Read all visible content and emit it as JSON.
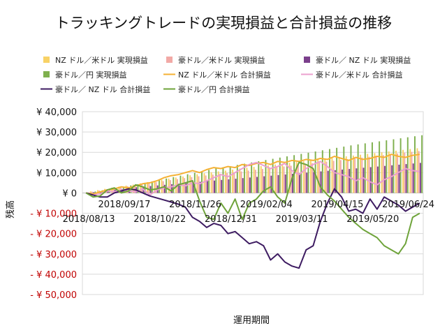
{
  "chart_data": {
    "type": "bar",
    "title": "トラッキングトレードの実現損益と合計損益の推移",
    "xlabel": "運用期間",
    "ylabel": "残高",
    "ylim": [
      -50000,
      40000
    ],
    "yticks": [
      {
        "value": 40000,
        "label": "¥ 40,000"
      },
      {
        "value": 30000,
        "label": "¥ 30,000"
      },
      {
        "value": 20000,
        "label": "¥ 20,000"
      },
      {
        "value": 10000,
        "label": "¥ 10,000"
      },
      {
        "value": 0,
        "label": "¥ 0"
      },
      {
        "value": -10000,
        "label": "- ¥ 10,000"
      },
      {
        "value": -20000,
        "label": "- ¥ 20,000"
      },
      {
        "value": -30000,
        "label": "- ¥ 30,000"
      },
      {
        "value": -40000,
        "label": "- ¥ 40,000"
      },
      {
        "value": -50000,
        "label": "- ¥ 50,000"
      }
    ],
    "grid": true,
    "legend_position": "top",
    "xticks": [
      {
        "index": 0,
        "label": "2018/08/13",
        "row": 2
      },
      {
        "index": 5,
        "label": "2018/09/17",
        "row": 1
      },
      {
        "index": 10,
        "label": "2018/10/22",
        "row": 2
      },
      {
        "index": 15,
        "label": "2018/11/26",
        "row": 1
      },
      {
        "index": 20,
        "label": "2018/12/31",
        "row": 2
      },
      {
        "index": 25,
        "label": "2019/02/04",
        "row": 1
      },
      {
        "index": 30,
        "label": "2019/03/11",
        "row": 2
      },
      {
        "index": 35,
        "label": "2019/04/15",
        "row": 1
      },
      {
        "index": 40,
        "label": "2019/05/20",
        "row": 2
      },
      {
        "index": 45,
        "label": "2019/06/24",
        "row": 1
      }
    ],
    "series": [
      {
        "name": "NZ ドル／米ドル 実現損益",
        "kind": "bar",
        "color": "#F8D266",
        "values": [
          0,
          800,
          1400,
          2000,
          2600,
          3100,
          3600,
          4100,
          4700,
          5300,
          5900,
          6500,
          7100,
          7600,
          8100,
          8700,
          9200,
          9700,
          10200,
          10600,
          11000,
          11500,
          12000,
          12400,
          12800,
          13200,
          13600,
          14000,
          14400,
          14800,
          15200,
          15600,
          16000,
          16400,
          16800,
          17200,
          17600,
          18000,
          18400,
          18800,
          19200,
          19600,
          20000,
          20400,
          20800,
          21200,
          21600,
          22000
        ]
      },
      {
        "name": "豪ドル／米ドル 実現損益",
        "kind": "bar",
        "color": "#F2A9A6",
        "values": [
          0,
          600,
          1200,
          1800,
          2300,
          2800,
          3300,
          3800,
          4300,
          4800,
          5300,
          5800,
          6300,
          6800,
          7300,
          7800,
          8200,
          8600,
          9000,
          9400,
          9800,
          10200,
          10600,
          11000,
          11400,
          11800,
          12200,
          12600,
          13000,
          13400,
          13800,
          14200,
          14600,
          15000,
          15400,
          15800,
          16200,
          16600,
          17000,
          17400,
          17800,
          18200,
          18600,
          19000,
          19400,
          19800,
          20200,
          20600
        ]
      },
      {
        "name": "豪ドル／ NZ ドル 実現損益",
        "kind": "bar",
        "color": "#7B3F8C",
        "values": [
          0,
          400,
          800,
          1200,
          1600,
          2000,
          2400,
          2800,
          3100,
          3400,
          3700,
          4000,
          4300,
          4600,
          4900,
          5200,
          5500,
          5800,
          6100,
          6400,
          6700,
          7000,
          7300,
          7600,
          7900,
          8200,
          8500,
          8800,
          9100,
          9400,
          9700,
          10000,
          10300,
          10600,
          10900,
          11200,
          11500,
          11800,
          12100,
          12400,
          12700,
          13000,
          13300,
          13600,
          13900,
          14200,
          14500,
          14800
        ]
      },
      {
        "name": "豪ドル／円 実現損益",
        "kind": "bar",
        "color": "#7FB04E",
        "values": [
          0,
          700,
          1300,
          1900,
          2500,
          3100,
          3700,
          4300,
          5000,
          5700,
          6400,
          7100,
          7800,
          8500,
          9200,
          9900,
          10600,
          11300,
          12000,
          12600,
          13200,
          13800,
          14400,
          15000,
          15600,
          16200,
          16800,
          17400,
          18000,
          18600,
          19200,
          19800,
          20400,
          21000,
          21600,
          22200,
          22800,
          23400,
          23900,
          24400,
          24900,
          25400,
          25900,
          26400,
          26900,
          27400,
          27900,
          28400
        ]
      },
      {
        "name": "NZ ドル／米ドル 合計損益",
        "kind": "line",
        "color": "#F5B133",
        "values": [
          0,
          -500,
          500,
          1500,
          2000,
          3000,
          2500,
          3500,
          4500,
          5000,
          6000,
          7500,
          8500,
          9000,
          10000,
          11000,
          10000,
          11500,
          12500,
          12000,
          13000,
          12500,
          14000,
          13500,
          14500,
          15000,
          14000,
          15500,
          15000,
          16000,
          15500,
          16500,
          16000,
          17000,
          16500,
          18000,
          17000,
          16000,
          17500,
          16500,
          17000,
          18000,
          17500,
          19000,
          18000,
          17500,
          18500,
          19000
        ]
      },
      {
        "name": "豪ドル／米ドル 合計損益",
        "kind": "line",
        "color": "#EBA0CF",
        "values": [
          0,
          -1000,
          -500,
          1000,
          500,
          1500,
          1000,
          500,
          2000,
          -1000,
          1500,
          2500,
          3000,
          4000,
          3500,
          5000,
          4500,
          6000,
          7500,
          9000,
          8000,
          10000,
          12000,
          14000,
          15000,
          13500,
          12000,
          13000,
          14500,
          11000,
          9000,
          12000,
          14000,
          15500,
          13000,
          10000,
          9000,
          8000,
          6000,
          7500,
          5500,
          4000,
          6500,
          8000,
          10000,
          12000,
          11000,
          10500
        ]
      },
      {
        "name": "豪ドル／ NZ ドル 合計損益",
        "kind": "line",
        "color": "#3D1B61",
        "values": [
          0,
          -1000,
          -2000,
          -2000,
          0,
          1000,
          2000,
          1500,
          0,
          -1500,
          -2500,
          -3500,
          -4500,
          -5500,
          -7000,
          -12000,
          -14000,
          -17000,
          -15000,
          -16000,
          -20000,
          -19000,
          -22000,
          -25000,
          -24000,
          -26000,
          -33000,
          -30000,
          -34000,
          -36000,
          -37000,
          -28000,
          -26000,
          -14000,
          -5000,
          2000,
          -2000,
          -9000,
          -8000,
          -10000,
          -3000,
          -8000,
          -2000,
          -4000,
          -6000,
          -9000,
          -7000,
          -5000
        ]
      },
      {
        "name": "豪ドル／円 合計損益",
        "kind": "line",
        "color": "#6EA33A",
        "values": [
          0,
          -2000,
          -1500,
          1500,
          2500,
          0,
          1000,
          4000,
          3000,
          1500,
          2000,
          3000,
          1000,
          4000,
          5000,
          6000,
          -4000,
          -12000,
          -13000,
          -5000,
          -10000,
          -3000,
          -13000,
          -5000,
          -3000,
          1000,
          3000,
          -2000,
          -5000,
          7000,
          15000,
          14000,
          12000,
          3000,
          -1000,
          -4000,
          -8000,
          -12000,
          -15000,
          -18000,
          -20000,
          -22000,
          -26000,
          -28000,
          -30000,
          -25000,
          -12000,
          -10000
        ]
      }
    ]
  }
}
